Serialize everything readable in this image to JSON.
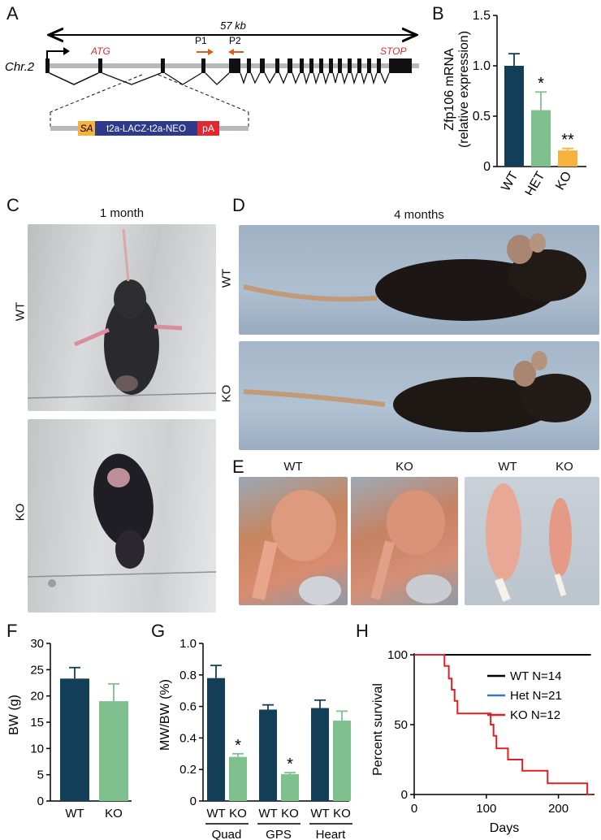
{
  "panels": {
    "A": "A",
    "B": "B",
    "C": "C",
    "D": "D",
    "E": "E",
    "F": "F",
    "G": "G",
    "H": "H"
  },
  "gene_diagram": {
    "span": "57 kb",
    "chromosome": "Chr.2",
    "atg": "ATG",
    "stop": "STOP",
    "primer1": "P1",
    "primer2": "P2",
    "cassette": {
      "sa": "SA",
      "body": "t2a-LACZ-t2a-NEO",
      "pa": "pA"
    }
  },
  "photos": {
    "c_title": "1 month",
    "c_wt": "WT",
    "c_ko": "KO",
    "d_title": "4 months",
    "d_wt": "WT",
    "d_ko": "KO",
    "e_labels": [
      "WT",
      "KO",
      "WT",
      "KO"
    ]
  },
  "colors": {
    "wt": "#123e57",
    "het": "#7ec08e",
    "ko": "#f6b23b",
    "accent_red": "#d62b2b",
    "cassette_blue": "#2d3a8c"
  },
  "chart_data": [
    {
      "panel": "B",
      "type": "bar",
      "categories": [
        "WT",
        "HET",
        "KO"
      ],
      "values": [
        1.0,
        0.56,
        0.16
      ],
      "errors": [
        0.12,
        0.18,
        0.02
      ],
      "significance": [
        "",
        "*",
        "**"
      ],
      "ylabel": "Zfp106 mRNA",
      "ylabel2": "(relative expression)",
      "ylim": [
        0,
        1.5
      ],
      "yticks": [
        "0",
        "0.5",
        "1.0",
        "1.5"
      ]
    },
    {
      "panel": "F",
      "type": "bar",
      "categories": [
        "WT",
        "KO"
      ],
      "values": [
        23.3,
        19.0
      ],
      "errors": [
        2.1,
        3.3
      ],
      "ylabel": "BW (g)",
      "ylim": [
        0,
        30
      ],
      "yticks": [
        "0",
        "5",
        "10",
        "15",
        "20",
        "25",
        "30"
      ]
    },
    {
      "panel": "G",
      "type": "bar",
      "groups": [
        "Quad",
        "GPS",
        "Heart"
      ],
      "categories": [
        "WT",
        "KO",
        "WT",
        "KO",
        "WT",
        "KO"
      ],
      "values": [
        0.78,
        0.28,
        0.58,
        0.17,
        0.59,
        0.51
      ],
      "errors": [
        0.08,
        0.02,
        0.03,
        0.01,
        0.05,
        0.06
      ],
      "significance": [
        "",
        "*",
        "",
        "*",
        "",
        ""
      ],
      "ylabel": "MW/BW (%)",
      "ylim": [
        0,
        1.0
      ],
      "yticks": [
        "0",
        "0.2",
        "0.4",
        "0.6",
        "0.8",
        "1.0"
      ]
    },
    {
      "panel": "H",
      "type": "line",
      "xlabel": "Days",
      "ylabel": "Percent survival",
      "xlim": [
        0,
        250
      ],
      "ylim": [
        0,
        100
      ],
      "xticks": [
        "0",
        "100",
        "200"
      ],
      "yticks": [
        "0",
        "50",
        "100"
      ],
      "legend": [
        "WT N=14",
        "Het N=21",
        "KO N=12"
      ],
      "series": [
        {
          "name": "WT N=14",
          "color": "#000000",
          "x": [
            0,
            245
          ],
          "y": [
            100,
            100
          ]
        },
        {
          "name": "Het N=21",
          "color": "#2f7fc1",
          "x": [
            0,
            245
          ],
          "y": [
            100,
            100
          ]
        },
        {
          "name": "KO N=12",
          "color": "#e02020",
          "x": [
            0,
            38,
            42,
            48,
            52,
            56,
            60,
            100,
            106,
            110,
            114,
            130,
            150,
            185,
            240,
            245
          ],
          "y": [
            100,
            100,
            92,
            83,
            75,
            67,
            58,
            58,
            50,
            42,
            33,
            25,
            17,
            8,
            0,
            0
          ]
        }
      ]
    }
  ]
}
